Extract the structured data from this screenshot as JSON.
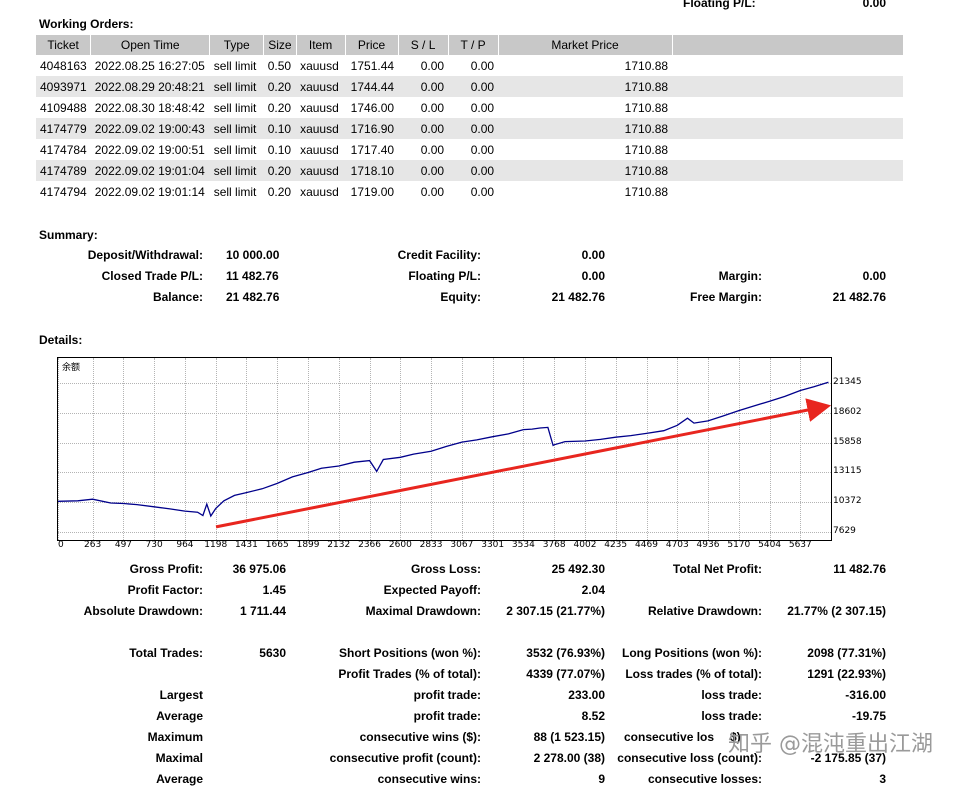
{
  "header": {
    "floating_label": "Floating P/L:",
    "floating_value": "0.00"
  },
  "orders": {
    "title": "Working Orders:",
    "columns": [
      "Ticket",
      "Open Time",
      "Type",
      "Size",
      "Item",
      "Price",
      "S / L",
      "T / P",
      "Market Price",
      ""
    ],
    "rows": [
      [
        "4048163",
        "2022.08.25 16:27:05",
        "sell limit",
        "0.50",
        "xauusd",
        "1751.44",
        "0.00",
        "0.00",
        "1710.88"
      ],
      [
        "4093971",
        "2022.08.29 20:48:21",
        "sell limit",
        "0.20",
        "xauusd",
        "1744.44",
        "0.00",
        "0.00",
        "1710.88"
      ],
      [
        "4109488",
        "2022.08.30 18:48:42",
        "sell limit",
        "0.20",
        "xauusd",
        "1746.00",
        "0.00",
        "0.00",
        "1710.88"
      ],
      [
        "4174779",
        "2022.09.02 19:00:43",
        "sell limit",
        "0.10",
        "xauusd",
        "1716.90",
        "0.00",
        "0.00",
        "1710.88"
      ],
      [
        "4174784",
        "2022.09.02 19:00:51",
        "sell limit",
        "0.10",
        "xauusd",
        "1717.40",
        "0.00",
        "0.00",
        "1710.88"
      ],
      [
        "4174789",
        "2022.09.02 19:01:04",
        "sell limit",
        "0.20",
        "xauusd",
        "1718.10",
        "0.00",
        "0.00",
        "1710.88"
      ],
      [
        "4174794",
        "2022.09.02 19:01:14",
        "sell limit",
        "0.20",
        "xauusd",
        "1719.00",
        "0.00",
        "0.00",
        "1710.88"
      ]
    ]
  },
  "summary": {
    "title": "Summary:",
    "deposit_label": "Deposit/Withdrawal:",
    "deposit_value": "10 000.00",
    "credit_label": "Credit Facility:",
    "credit_value": "0.00",
    "closed_label": "Closed Trade P/L:",
    "closed_value": "11 482.76",
    "floating_label": "Floating P/L:",
    "floating_value": "0.00",
    "margin_label": "Margin:",
    "margin_value": "0.00",
    "balance_label": "Balance:",
    "balance_value": "21 482.76",
    "equity_label": "Equity:",
    "equity_value": "21 482.76",
    "free_margin_label": "Free Margin:",
    "free_margin_value": "21 482.76"
  },
  "details": {
    "title": "Details:"
  },
  "chart_data": {
    "type": "line",
    "title": "余额",
    "x_ticks": [
      "0",
      "263",
      "497",
      "730",
      "964",
      "1198",
      "1431",
      "1665",
      "1899",
      "2132",
      "2366",
      "2600",
      "2833",
      "3067",
      "3301",
      "3534",
      "3768",
      "4002",
      "4235",
      "4469",
      "4703",
      "4936",
      "5170",
      "5404",
      "5637"
    ],
    "y_ticks": [
      "21345",
      "18602",
      "15858",
      "13115",
      "10372",
      "7629"
    ],
    "xlim": [
      0,
      5870
    ],
    "ylim": [
      7629,
      22717
    ],
    "series": [
      {
        "color": "#00008b",
        "x": [
          0,
          150,
          263,
          400,
          497,
          600,
          730,
          850,
          964,
          1060,
          1100,
          1130,
          1160,
          1198,
          1260,
          1340,
          1431,
          1550,
          1665,
          1780,
          1899,
          2000,
          2132,
          2250,
          2366,
          2420,
          2470,
          2600,
          2700,
          2833,
          2950,
          3067,
          3180,
          3301,
          3420,
          3534,
          3600,
          3660,
          3720,
          3760,
          3768,
          3850,
          4002,
          4120,
          4235,
          4350,
          4469,
          4600,
          4703,
          4780,
          4830,
          4936,
          5050,
          5170,
          5290,
          5404,
          5520,
          5637,
          5740,
          5850
        ],
        "y": [
          10450,
          10500,
          10650,
          10300,
          10250,
          10150,
          9950,
          9750,
          9550,
          9450,
          9150,
          10200,
          9100,
          9800,
          10500,
          11000,
          11250,
          11600,
          12100,
          12700,
          13100,
          13500,
          13700,
          14050,
          14200,
          13200,
          14300,
          14500,
          14800,
          15050,
          15500,
          15900,
          16100,
          16400,
          16650,
          17050,
          17100,
          17200,
          17250,
          15600,
          15650,
          15950,
          16000,
          16150,
          16350,
          16500,
          16700,
          16950,
          17450,
          18100,
          17650,
          17850,
          18300,
          18800,
          19250,
          19650,
          20100,
          20650,
          21000,
          21400
        ]
      }
    ],
    "annotation_arrow": {
      "from": [
        1200,
        8100
      ],
      "to": [
        5850,
        19300
      ],
      "color": "#e8261f"
    }
  },
  "stats": {
    "gross_profit_label": "Gross Profit:",
    "gross_profit_value": "36 975.06",
    "gross_loss_label": "Gross Loss:",
    "gross_loss_value": "25 492.30",
    "total_net_label": "Total Net Profit:",
    "total_net_value": "11 482.76",
    "profit_factor_label": "Profit Factor:",
    "profit_factor_value": "1.45",
    "expected_payoff_label": "Expected Payoff:",
    "expected_payoff_value": "2.04",
    "abs_dd_label": "Absolute Drawdown:",
    "abs_dd_value": "1 711.44",
    "max_dd_label": "Maximal Drawdown:",
    "max_dd_value": "2 307.15 (21.77%)",
    "rel_dd_label": "Relative Drawdown:",
    "rel_dd_value": "21.77% (2 307.15)",
    "total_trades_label": "Total Trades:",
    "total_trades_value": "5630",
    "short_label": "Short Positions (won %):",
    "short_value": "3532 (76.93%)",
    "long_label": "Long Positions (won %):",
    "long_value": "2098 (77.31%)",
    "profit_trades_label": "Profit Trades (% of total):",
    "profit_trades_value": "4339 (77.07%)",
    "loss_trades_label": "Loss trades (% of total):",
    "loss_trades_value": "1291 (22.93%)",
    "largest_label": "Largest",
    "largest_profit_label": "profit trade:",
    "largest_profit_value": "233.00",
    "largest_loss_label": "loss trade:",
    "largest_loss_value": "-316.00",
    "average_label": "Average",
    "average_profit_label": "profit trade:",
    "average_profit_value": "8.52",
    "average_loss_label": "loss trade:",
    "average_loss_value": "-19.75",
    "maximum_label": "Maximum",
    "max_wins_label": "consecutive wins ($):",
    "max_wins_value": "88 (1 523.15)",
    "max_losses_label": "consecutive los",
    "max_losses_value": "$)",
    "maximal_label": "Maximal",
    "maximal_profit_label": "consecutive profit (count):",
    "maximal_profit_value": "2 278.00 (38)",
    "maximal_loss_label": "consecutive loss (count):",
    "maximal_loss_value": "-2 175.85 (37)",
    "average2_label": "Average",
    "avg_wins_label": "consecutive wins:",
    "avg_wins_value": "9",
    "avg_losses_label": "consecutive losses:",
    "avg_losses_value": "3"
  },
  "watermark": "知乎 @混沌重出江湖"
}
